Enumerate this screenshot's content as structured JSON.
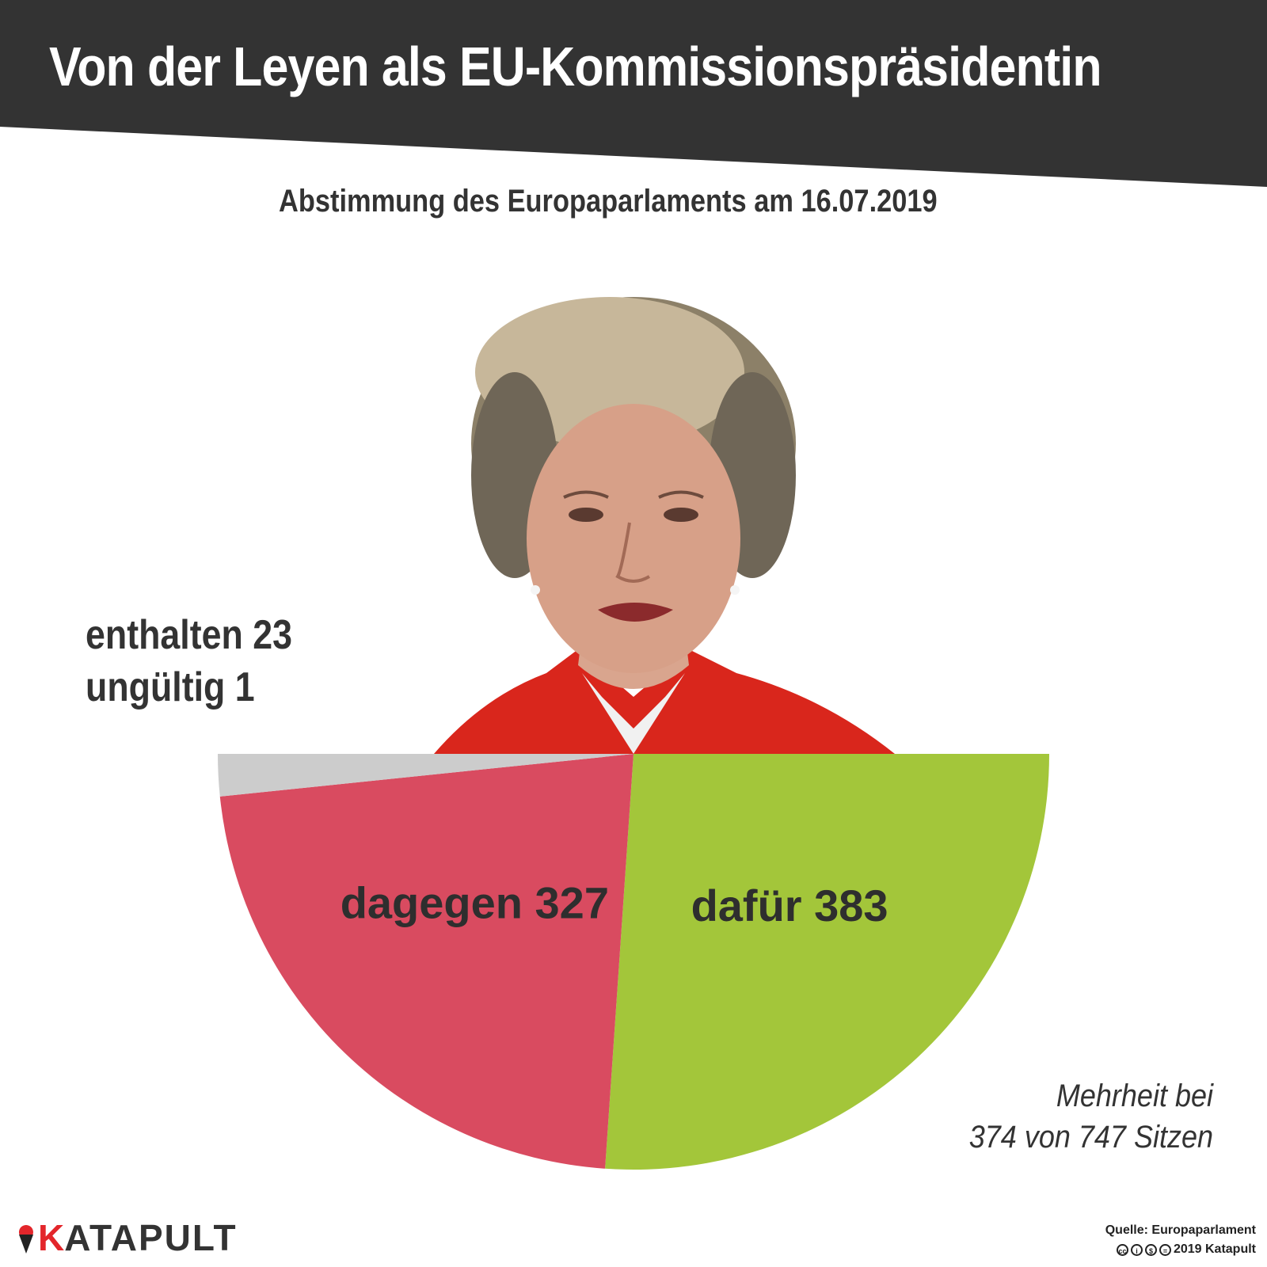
{
  "title": "Von der Leyen als EU-Kommissionspräsidentin",
  "subtitle": "Abstimmung des Europaparlaments am 16.07.2019",
  "side_labels": {
    "abstained": "enthalten 23",
    "invalid": "ungültig 1"
  },
  "chart_data": {
    "type": "pie",
    "subtype": "half-donut-semicircle",
    "slices": [
      {
        "name": "dafür",
        "label": "dafür 383",
        "value": 383,
        "color": "#a3c63a"
      },
      {
        "name": "dagegen",
        "label": "dagegen 327",
        "value": 327,
        "color": "#d94b60"
      },
      {
        "name": "enthalten / ungültig",
        "label": "",
        "value": 24,
        "color": "#cccccc"
      }
    ],
    "annotation": {
      "line1": "Mehrheit bei",
      "line2": "374 von 747 Sitzen"
    }
  },
  "footer": {
    "brand_initial": "K",
    "brand_rest": "ATAPULT",
    "source": "Quelle: Europaparlament",
    "copyright": "2019 Katapult",
    "license_icons": [
      "cc-icon",
      "by-icon",
      "nc-icon",
      "nd-icon"
    ]
  }
}
